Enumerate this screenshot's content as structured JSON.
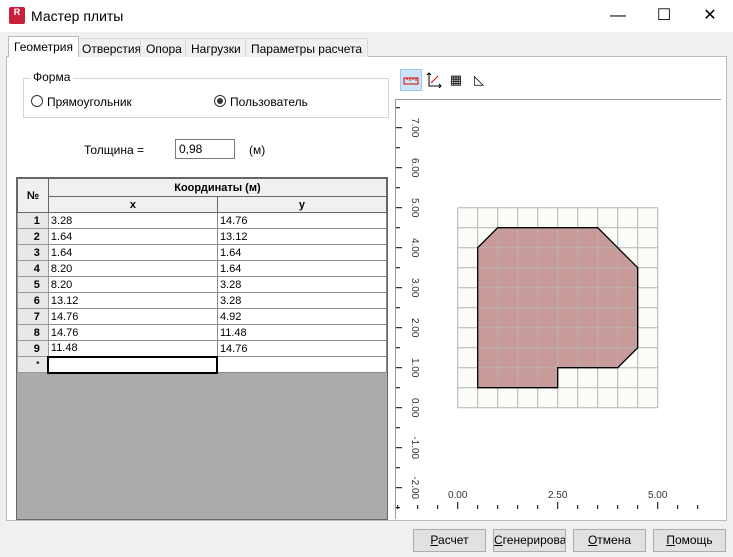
{
  "window": {
    "title": "Мастер плиты",
    "app_icon_text": "R",
    "controls": {
      "minimize": "—",
      "maximize": "☐",
      "close": "✕"
    }
  },
  "tabs": [
    {
      "label": "Геометрия",
      "active": true
    },
    {
      "label": "Отверстия"
    },
    {
      "label": "Опора"
    },
    {
      "label": "Нагрузки"
    },
    {
      "label": "Параметры расчета"
    }
  ],
  "shape": {
    "label": "Форма",
    "options": [
      {
        "label": "Прямоугольник",
        "selected": false
      },
      {
        "label": "Пользователь",
        "selected": true
      }
    ]
  },
  "thickness": {
    "label": "Толщина =",
    "value": "0,98",
    "unit": "(м)"
  },
  "table": {
    "num_header": "№",
    "group_header": "Координаты (м)",
    "x_header": "x",
    "y_header": "y",
    "rows": [
      [
        "1",
        "3.28",
        "14.76"
      ],
      [
        "2",
        "1.64",
        "13.12"
      ],
      [
        "3",
        "1.64",
        "1.64"
      ],
      [
        "4",
        "8.20",
        "1.64"
      ],
      [
        "5",
        "8.20",
        "3.28"
      ],
      [
        "6",
        "13.12",
        "3.28"
      ],
      [
        "7",
        "14.76",
        "4.92"
      ],
      [
        "8",
        "14.76",
        "11.48"
      ],
      [
        "9",
        "11.48",
        "14.76"
      ]
    ],
    "new_row_marker": "*"
  },
  "toolbar": [
    "ruler-icon",
    "axes-icon",
    "grid-icon",
    "shape-icon"
  ],
  "plot": {
    "x_ticks": [
      "0.00",
      "2.50",
      "5.00"
    ],
    "y_ticks": [
      "-2.00",
      "-1.00",
      "0.00",
      "1.00",
      "2.00",
      "3.00",
      "4.00",
      "5.00",
      "6.00",
      "7.00"
    ],
    "fill_color": "#c99a9a",
    "grid_color": "#b4b4b4"
  },
  "buttons": {
    "calc": {
      "u": "Р",
      "rest": "асчет"
    },
    "generate": {
      "u": "С",
      "rest": "генерировать"
    },
    "cancel": {
      "u": "О",
      "rest": "тмена"
    },
    "help": {
      "u": "П",
      "rest": "омощь"
    }
  }
}
